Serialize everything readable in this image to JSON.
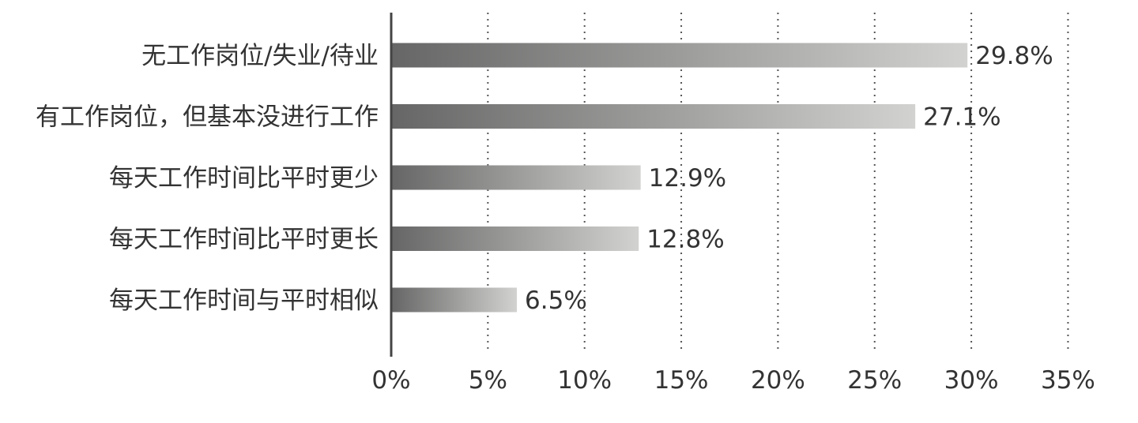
{
  "chart_data": {
    "type": "bar",
    "orientation": "horizontal",
    "categories": [
      "无工作岗位/失业/待业",
      "有工作岗位，但基本没进行工作",
      "每天工作时间比平时更少",
      "每天工作时间比平时更长",
      "每天工作时间与平时相似"
    ],
    "values": [
      29.8,
      27.1,
      12.9,
      12.8,
      6.5
    ],
    "value_labels": [
      "29.8%",
      "27.1%",
      "12.9%",
      "12.8%",
      "6.5%"
    ],
    "x_ticks": [
      "0%",
      "5%",
      "10%",
      "15%",
      "20%",
      "25%",
      "30%",
      "35%"
    ],
    "xlim": [
      0,
      35
    ],
    "grid": true,
    "bar_gradient": [
      "#666666",
      "#d2d2d0"
    ]
  }
}
